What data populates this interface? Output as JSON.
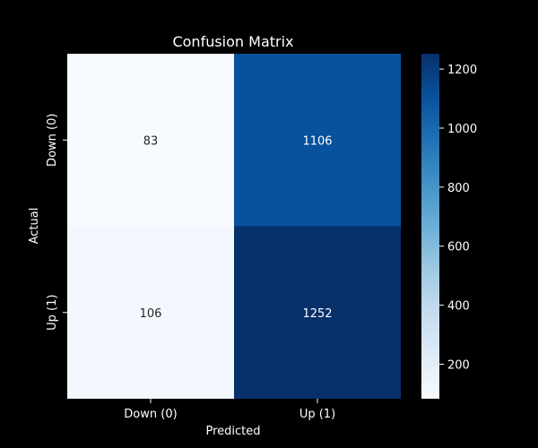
{
  "chart_data": {
    "type": "heatmap",
    "title": "Confusion Matrix",
    "xlabel": "Predicted",
    "ylabel": "Actual",
    "x_categories": [
      "Down (0)",
      "Up (1)"
    ],
    "y_categories": [
      "Down (0)",
      "Up (1)"
    ],
    "values": [
      [
        83,
        1106
      ],
      [
        106,
        1252
      ]
    ],
    "colormap": "Blues",
    "value_range": [
      83,
      1252
    ],
    "colorbar_ticks": [
      200,
      400,
      600,
      800,
      1000,
      1200
    ],
    "grid": false,
    "legend": "colorbar-right",
    "colors": {
      "background": "#000000",
      "text": "#ffffff",
      "low_cell_text": "#262626",
      "high_cell_text": "#ffffff"
    }
  }
}
